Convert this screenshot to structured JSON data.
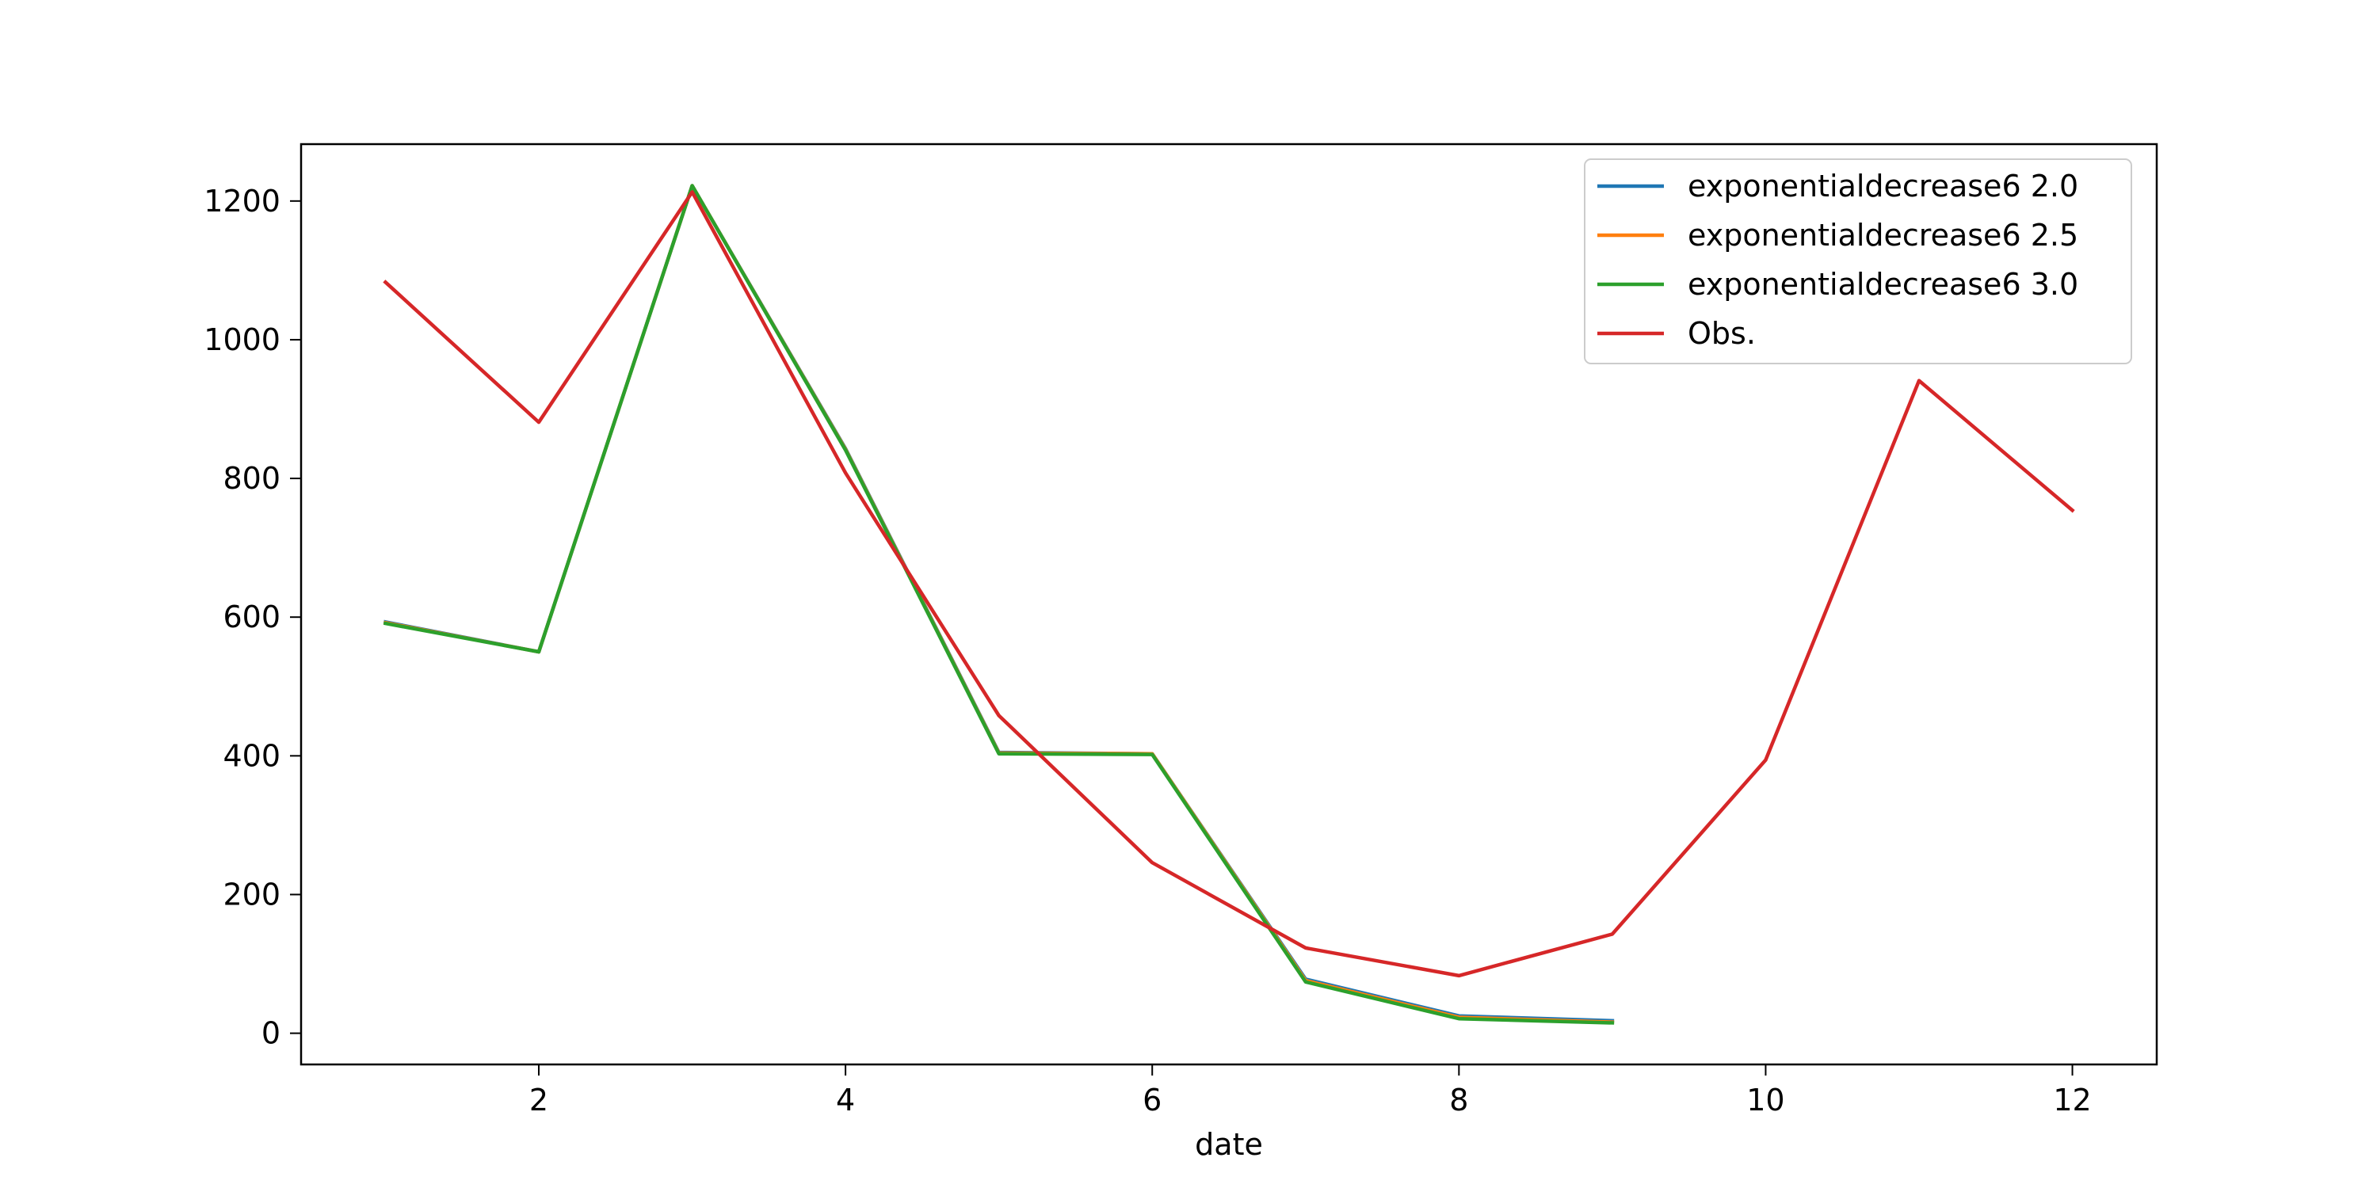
{
  "chart_data": {
    "type": "line",
    "xlabel": "date",
    "ylabel": "",
    "xlim": [
      0.45,
      12.55
    ],
    "ylim": [
      -45,
      1282
    ],
    "xticks": [
      2,
      4,
      6,
      8,
      10,
      12
    ],
    "yticks": [
      0,
      200,
      400,
      600,
      800,
      1000,
      1200
    ],
    "grid": false,
    "legend_position": "top-right",
    "series": [
      {
        "name": "exponentialdecrease6 2.0",
        "color": "#1f77b4",
        "x": [
          1,
          2,
          3,
          4,
          5,
          6,
          7,
          8,
          9
        ],
        "y": [
          593,
          550,
          1222,
          843,
          405,
          403,
          78,
          25,
          18
        ]
      },
      {
        "name": "exponentialdecrease6 2.5",
        "color": "#ff7f0e",
        "x": [
          1,
          2,
          3,
          4,
          5,
          6,
          7,
          8,
          9
        ],
        "y": [
          592,
          550,
          1222,
          842,
          404,
          403,
          76,
          23,
          16
        ]
      },
      {
        "name": "exponentialdecrease6 3.0",
        "color": "#2ca02c",
        "x": [
          1,
          2,
          3,
          4,
          5,
          6,
          7,
          8,
          9
        ],
        "y": [
          591,
          550,
          1222,
          841,
          403,
          402,
          74,
          21,
          15
        ]
      },
      {
        "name": "Obs.",
        "color": "#d62728",
        "x": [
          1,
          2,
          3,
          4,
          5,
          6,
          7,
          8,
          9,
          10,
          11,
          12
        ],
        "y": [
          1083,
          881,
          1213,
          808,
          458,
          246,
          123,
          83,
          143,
          394,
          941,
          754
        ]
      }
    ]
  }
}
